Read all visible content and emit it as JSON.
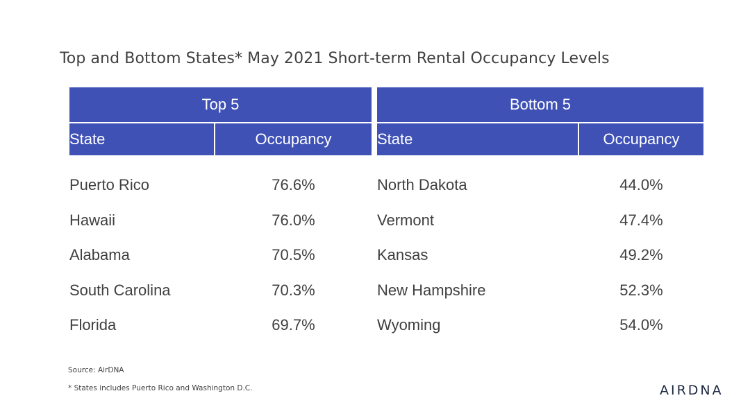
{
  "title": "Top and Bottom States* May 2021 Short-term Rental Occupancy Levels",
  "top": {
    "heading": "Top 5",
    "col_state": "State",
    "col_occ": "Occupancy",
    "rows": [
      {
        "state": "Puerto Rico",
        "occ": "76.6%"
      },
      {
        "state": "Hawaii",
        "occ": "76.0%"
      },
      {
        "state": "Alabama",
        "occ": "70.5%"
      },
      {
        "state": "South Carolina",
        "occ": "70.3%"
      },
      {
        "state": "Florida",
        "occ": "69.7%"
      }
    ]
  },
  "bottom": {
    "heading": "Bottom 5",
    "col_state": "State",
    "col_occ": "Occupancy",
    "rows": [
      {
        "state": "North Dakota",
        "occ": "44.0%"
      },
      {
        "state": "Vermont",
        "occ": "47.4%"
      },
      {
        "state": "Kansas",
        "occ": "49.2%"
      },
      {
        "state": "New Hampshire",
        "occ": "52.3%"
      },
      {
        "state": "Wyoming",
        "occ": "54.0%"
      }
    ]
  },
  "footer": {
    "source": "Source: AirDNA",
    "note": "* States includes Puerto Rico and Washington D.C.",
    "logo": "AIRDNA"
  },
  "colors": {
    "header_bg": "#3f51b5",
    "header_text": "#ffffff",
    "body_text": "#3f3f3f"
  }
}
